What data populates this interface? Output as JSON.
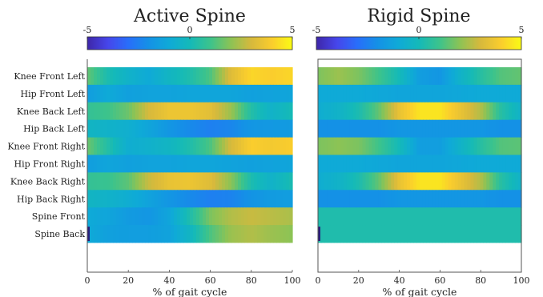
{
  "chart_data": [
    {
      "type": "heatmap",
      "title": "Active Spine",
      "xlabel": "% of gait cycle",
      "ylabel": "",
      "xlim": [
        0,
        100
      ],
      "xticks": [
        0,
        20,
        40,
        60,
        80,
        100
      ],
      "colorbar": {
        "range": [
          -5,
          5
        ],
        "ticks": [
          -5,
          0,
          5
        ],
        "colormap": "parula",
        "position": "top"
      },
      "rows": [
        "Knee Front Left",
        "Hip Front Left",
        "Knee Back Left",
        "Hip Back Left",
        "Knee Front Right",
        "Hip Front Right",
        "Knee Back Right",
        "Hip Back Right",
        "Spine Front",
        "Spine Back"
      ],
      "x": [
        0,
        10,
        20,
        30,
        40,
        50,
        60,
        70,
        80,
        90,
        100
      ],
      "values": [
        [
          1.5,
          0.2,
          -0.5,
          -1.0,
          -0.3,
          0.3,
          1.2,
          3.2,
          4.2,
          4.0,
          4.2
        ],
        [
          -1.5,
          -1.0,
          -1.4,
          -1.3,
          -1.3,
          -1.2,
          -1.2,
          -1.2,
          -1.4,
          -1.3,
          -1.2
        ],
        [
          0.8,
          1.0,
          1.6,
          3.0,
          3.6,
          3.6,
          3.3,
          2.2,
          0.4,
          -0.5,
          0.1
        ],
        [
          -0.3,
          -0.5,
          -0.7,
          -1.2,
          -1.8,
          -2.2,
          -2.5,
          -2.3,
          -1.8,
          -1.7,
          -1.6
        ],
        [
          1.6,
          0.4,
          -0.8,
          -0.6,
          -0.3,
          0.3,
          1.2,
          3.0,
          4.0,
          3.8,
          4.0
        ],
        [
          -1.5,
          -1.2,
          -1.4,
          -1.3,
          -1.3,
          -1.2,
          -1.2,
          -1.3,
          -1.4,
          -1.3,
          -1.2
        ],
        [
          0.8,
          0.9,
          1.4,
          2.8,
          3.5,
          3.6,
          3.2,
          2.0,
          0.2,
          -0.5,
          0.2
        ],
        [
          -0.3,
          -0.5,
          -0.8,
          -1.3,
          -1.8,
          -2.2,
          -2.5,
          -2.4,
          -1.9,
          -1.6,
          -1.5
        ],
        [
          -1.0,
          -1.2,
          -1.6,
          -1.8,
          -1.2,
          0.3,
          1.8,
          2.5,
          2.8,
          2.6,
          2.4
        ],
        [
          -1.0,
          -1.4,
          -1.5,
          -1.5,
          -1.3,
          -0.3,
          1.2,
          2.2,
          2.5,
          2.2,
          2.0
        ]
      ]
    },
    {
      "type": "heatmap",
      "title": "Rigid Spine",
      "xlabel": "% of gait cycle",
      "ylabel": "",
      "xlim": [
        0,
        100
      ],
      "xticks": [
        0,
        20,
        40,
        60,
        80,
        100
      ],
      "colorbar": {
        "range": [
          -5,
          5
        ],
        "ticks": [
          -5,
          0,
          5
        ],
        "colormap": "parula",
        "position": "top"
      },
      "rows": [
        "Knee Front Left",
        "Hip Front Left",
        "Knee Back Left",
        "Hip Back Left",
        "Knee Front Right",
        "Hip Front Right",
        "Knee Back Right",
        "Hip Back Right",
        "Spine Front",
        "Spine Back"
      ],
      "x": [
        0,
        10,
        20,
        30,
        40,
        50,
        60,
        70,
        80,
        90,
        100
      ],
      "values": [
        [
          1.8,
          2.2,
          1.8,
          1.0,
          0.0,
          -1.5,
          -1.8,
          -0.5,
          0.5,
          1.3,
          1.5
        ],
        [
          -1.0,
          -1.0,
          -1.0,
          -1.1,
          -1.2,
          -1.2,
          -1.2,
          -1.1,
          -1.0,
          -1.0,
          -1.0
        ],
        [
          -0.8,
          -0.5,
          0.2,
          1.5,
          3.5,
          4.5,
          4.5,
          3.5,
          2.5,
          0.5,
          -0.5
        ],
        [
          -2.0,
          -2.0,
          -2.0,
          -2.0,
          -1.8,
          -1.8,
          -1.8,
          -1.8,
          -1.8,
          -2.0,
          -2.0
        ],
        [
          1.8,
          2.0,
          1.8,
          1.0,
          0.0,
          -1.5,
          -1.5,
          -0.5,
          0.5,
          1.3,
          1.4
        ],
        [
          -1.0,
          -1.0,
          -1.0,
          -1.1,
          -1.2,
          -1.2,
          -1.2,
          -1.1,
          -1.0,
          -1.0,
          -1.0
        ],
        [
          -0.8,
          -0.5,
          0.2,
          1.5,
          3.5,
          4.5,
          4.5,
          3.5,
          2.5,
          0.5,
          -0.5
        ],
        [
          -2.0,
          -2.0,
          -2.0,
          -2.0,
          -1.8,
          -1.8,
          -1.8,
          -1.8,
          -1.8,
          -2.0,
          -2.0
        ],
        [
          0.3,
          0.3,
          0.3,
          0.3,
          0.3,
          0.3,
          0.3,
          0.3,
          0.3,
          0.3,
          0.3
        ],
        [
          0.3,
          0.3,
          0.3,
          0.3,
          0.3,
          0.3,
          0.3,
          0.3,
          0.3,
          0.3,
          0.3
        ]
      ]
    }
  ]
}
